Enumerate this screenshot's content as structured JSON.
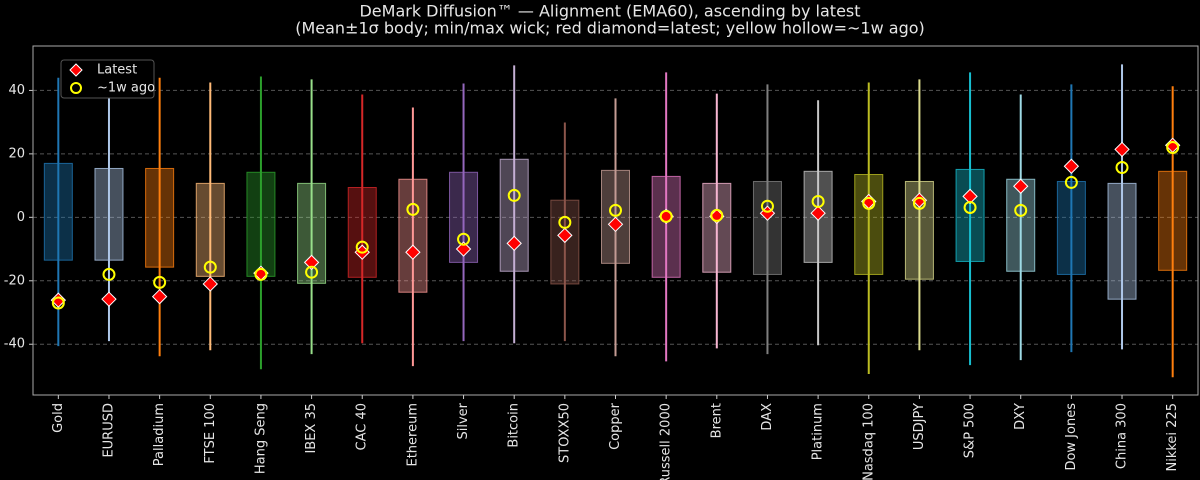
{
  "chart_data": {
    "type": "box",
    "title": "DeMark Diffusion™ — Alignment (EMA60), ascending by latest",
    "subtitle": "(Mean±1σ body; min/max wick; red diamond=latest; yellow hollow=~1w ago)",
    "categories": [
      "Gold",
      "EURUSD",
      "Palladium",
      "FTSE 100",
      "Hang Seng",
      "IBEX 35",
      "CAC 40",
      "Ethereum",
      "Silver",
      "Bitcoin",
      "STOXX50",
      "Copper",
      "Russell 2000",
      "Brent",
      "DAX",
      "Platinum",
      "Nasdaq 100",
      "USDJPY",
      "S&P 500",
      "DXY",
      "Dow Jones",
      "China 300",
      "Nikkei 225"
    ],
    "colors": [
      "#1f77b4",
      "#aec7e8",
      "#ff7f0e",
      "#ffbb78",
      "#2ca02c",
      "#98df8a",
      "#d62728",
      "#ff9896",
      "#9467bd",
      "#c5b0d5",
      "#8c564b",
      "#c49c94",
      "#e377c2",
      "#f7b6d2",
      "#7f7f7f",
      "#c7c7c7",
      "#bcbd22",
      "#dbdb8d",
      "#17becf",
      "#9edae5",
      "#1f77b4",
      "#aec7e8",
      "#ff7f0e"
    ],
    "mean_minus_sd": [
      -13.5,
      -13.5,
      -15.7,
      -18.6,
      -18.6,
      -20.8,
      -18.9,
      -23.6,
      -14.2,
      -17,
      -21,
      -14.5,
      -18.9,
      -17.3,
      -18,
      -14.2,
      -18,
      -19.5,
      -13.9,
      -17,
      -18,
      -25.8,
      -16.7
    ],
    "mean_plus_sd": [
      17,
      15.4,
      15.4,
      10.7,
      14.2,
      10.7,
      9.4,
      12,
      14.2,
      18.3,
      5.4,
      14.8,
      12.9,
      10.7,
      11.3,
      14.5,
      13.5,
      11.3,
      15.1,
      12,
      11.3,
      10.7,
      14.5
    ],
    "min": [
      -40.6,
      -39,
      -43.8,
      -41.9,
      -47.9,
      -43.1,
      -39.7,
      -46.9,
      -39,
      -39.7,
      -39,
      -43.8,
      -45.4,
      -41.3,
      -43.1,
      -40.3,
      -49.4,
      -41.9,
      -46.6,
      -45,
      -42.5,
      -41.6,
      -50.4
    ],
    "max": [
      44,
      43.5,
      44,
      42.5,
      44.4,
      43.5,
      38.7,
      34.6,
      42.2,
      47.9,
      29.9,
      37.5,
      45.7,
      39,
      41.9,
      36.9,
      42.5,
      43.5,
      45.7,
      38.7,
      41.9,
      48.2,
      41.3
    ],
    "series": [
      {
        "name": "Latest",
        "color": "#ff0000",
        "values": [
          -26.1,
          -25.8,
          -25,
          -21,
          -17.6,
          -14.2,
          -11,
          -11,
          -10,
          -8.2,
          -5.7,
          -2.2,
          0.3,
          0.3,
          1.3,
          1.3,
          5,
          5.4,
          6.6,
          9.8,
          16.1,
          21.4,
          22.7
        ]
      },
      {
        "name": "~1w ago",
        "color": "#ffff00",
        "values": [
          -27,
          -18,
          -20.5,
          -15.7,
          -18,
          -17.3,
          -9.4,
          2.5,
          -6.9,
          6.9,
          -1.6,
          2.2,
          0.3,
          0.6,
          3.5,
          5,
          4.4,
          4.4,
          3.1,
          2.2,
          11,
          15.7,
          22
        ]
      }
    ],
    "ylim": [
      -56,
      54
    ],
    "yticks": [
      -40,
      -20,
      0,
      20,
      40
    ],
    "grid": true,
    "legend": "upper left"
  }
}
